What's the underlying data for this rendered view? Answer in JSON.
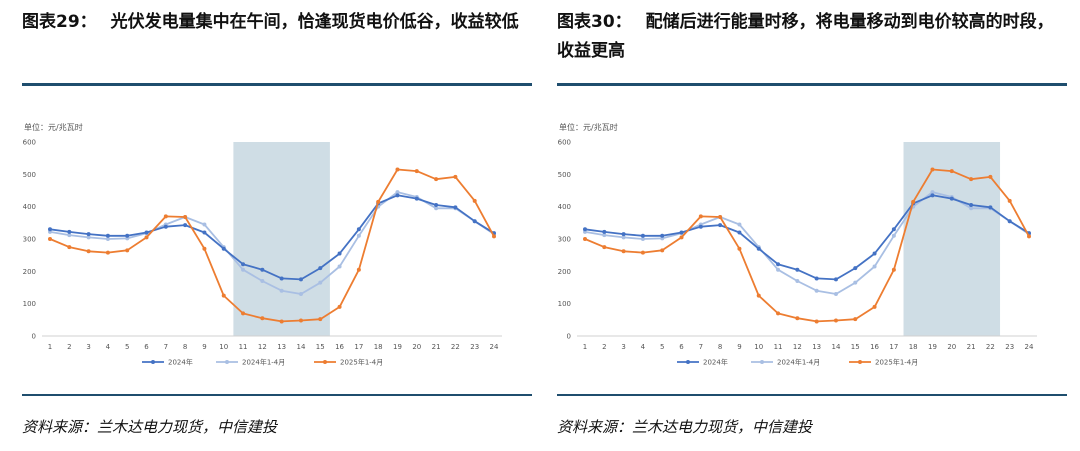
{
  "figures": [
    {
      "label": "图表29：",
      "title": "光伏发电量集中在午间，恰逢现货电价低谷，收益较低",
      "source": "资料来源：兰木达电力现货，中信建投"
    },
    {
      "label": "图表30：",
      "title": "配储后进行能量时移，将电量移动到电价较高的时段，收益更高",
      "source": "资料来源：兰木达电力现货，中信建投"
    }
  ],
  "chart_data": [
    {
      "type": "line",
      "unit_label": "单位：元/兆瓦时",
      "x": [
        1,
        2,
        3,
        4,
        5,
        6,
        7,
        8,
        9,
        10,
        11,
        12,
        13,
        14,
        15,
        16,
        17,
        18,
        19,
        20,
        21,
        22,
        23,
        24
      ],
      "ylim": [
        0,
        600
      ],
      "yticks": [
        0,
        100,
        200,
        300,
        400,
        500,
        600
      ],
      "highlight_range": [
        11,
        15
      ],
      "legend_position": "bottom",
      "series": [
        {
          "name": "2024年",
          "color": "#4472c4",
          "values": [
            330,
            322,
            315,
            310,
            310,
            320,
            338,
            343,
            320,
            270,
            222,
            205,
            178,
            175,
            210,
            255,
            330,
            410,
            435,
            425,
            405,
            398,
            355,
            318
          ]
        },
        {
          "name": "2024年1-4月",
          "color": "#a9bfe3",
          "values": [
            322,
            312,
            305,
            300,
            302,
            318,
            345,
            368,
            345,
            275,
            205,
            170,
            140,
            130,
            165,
            215,
            310,
            400,
            445,
            430,
            395,
            395,
            355,
            315
          ]
        },
        {
          "name": "2025年1-4月",
          "color": "#ed7d31",
          "values": [
            300,
            275,
            262,
            258,
            265,
            305,
            370,
            368,
            270,
            125,
            70,
            55,
            45,
            48,
            52,
            90,
            205,
            415,
            515,
            510,
            485,
            492,
            418,
            308
          ]
        }
      ]
    },
    {
      "type": "line",
      "unit_label": "单位：元/兆瓦时",
      "x": [
        1,
        2,
        3,
        4,
        5,
        6,
        7,
        8,
        9,
        10,
        11,
        12,
        13,
        14,
        15,
        16,
        17,
        18,
        19,
        20,
        21,
        22,
        23,
        24
      ],
      "ylim": [
        0,
        600
      ],
      "yticks": [
        0,
        100,
        200,
        300,
        400,
        500,
        600
      ],
      "highlight_range": [
        18,
        22
      ],
      "legend_position": "bottom",
      "series": [
        {
          "name": "2024年",
          "color": "#4472c4",
          "values": [
            330,
            322,
            315,
            310,
            310,
            320,
            338,
            343,
            320,
            270,
            222,
            205,
            178,
            175,
            210,
            255,
            330,
            410,
            435,
            425,
            405,
            398,
            355,
            318
          ]
        },
        {
          "name": "2024年1-4月",
          "color": "#a9bfe3",
          "values": [
            322,
            312,
            305,
            300,
            302,
            318,
            345,
            368,
            345,
            275,
            205,
            170,
            140,
            130,
            165,
            215,
            310,
            400,
            445,
            430,
            395,
            395,
            355,
            315
          ]
        },
        {
          "name": "2025年1-4月",
          "color": "#ed7d31",
          "values": [
            300,
            275,
            262,
            258,
            265,
            305,
            370,
            368,
            270,
            125,
            70,
            55,
            45,
            48,
            52,
            90,
            205,
            415,
            515,
            510,
            485,
            492,
            418,
            308
          ]
        }
      ]
    }
  ]
}
